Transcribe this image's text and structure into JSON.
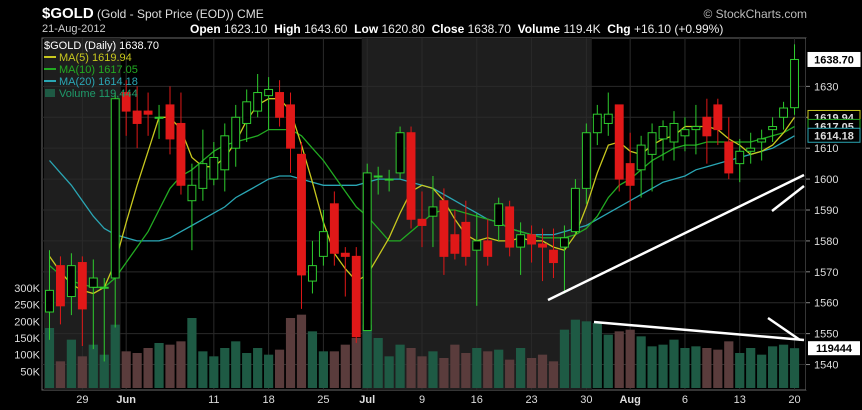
{
  "header": {
    "symbol": "$GOLD",
    "name": "(Gold - Spot Price (EOD))",
    "exchange": "CME",
    "date": "21-Aug-2012",
    "open_label": "Open",
    "open": "1623.10",
    "high_label": "High",
    "high": "1643.60",
    "low_label": "Low",
    "low": "1620.80",
    "close_label": "Close",
    "close": "1638.70",
    "volume_label": "Volume",
    "volume": "119.4K",
    "chg_label": "Chg",
    "chg": "+16.10 (+0.99%)",
    "brand": "© StockCharts.com"
  },
  "legend": {
    "title": "$GOLD (Daily) 1638.70",
    "ma5": "MA(5) 1619.94",
    "ma10": "MA(10) 1617.05",
    "ma20": "MA(20) 1614.18",
    "volume": "Volume 119,444"
  },
  "colors": {
    "up": "#2ecc2e",
    "down": "#e01818",
    "ma5": "#c8c81e",
    "ma10": "#22aa22",
    "ma20": "#2aa6b4",
    "vol_up": "#1e5a44",
    "vol_down": "#5a3c3c",
    "shade": "#1e1e1e",
    "annotation": "#ffffff"
  },
  "chart_data": {
    "type": "candlestick",
    "y_axis": {
      "min": 1535,
      "max": 1645,
      "ticks": [
        1540,
        1550,
        1560,
        1570,
        1580,
        1590,
        1600,
        1610,
        1620,
        1630
      ]
    },
    "volume_axis": {
      "ticks": [
        50000,
        100000,
        150000,
        200000,
        250000,
        300000
      ],
      "tick_labels": [
        "50K",
        "100K",
        "150K",
        "200K",
        "250K",
        "300K"
      ]
    },
    "x_labels": [
      {
        "label": "29",
        "i": 3,
        "bold": false
      },
      {
        "label": "Jun",
        "i": 7,
        "bold": true
      },
      {
        "label": "11",
        "i": 15,
        "bold": false
      },
      {
        "label": "18",
        "i": 20,
        "bold": false
      },
      {
        "label": "25",
        "i": 25,
        "bold": false
      },
      {
        "label": "Jul",
        "i": 29,
        "bold": true
      },
      {
        "label": "9",
        "i": 34,
        "bold": false
      },
      {
        "label": "16",
        "i": 39,
        "bold": false
      },
      {
        "label": "23",
        "i": 44,
        "bold": false
      },
      {
        "label": "30",
        "i": 49,
        "bold": false
      },
      {
        "label": "Aug",
        "i": 53,
        "bold": true
      },
      {
        "label": "6",
        "i": 58,
        "bold": false
      },
      {
        "label": "13",
        "i": 63,
        "bold": false
      },
      {
        "label": "20",
        "i": 68,
        "bold": false
      }
    ],
    "candles": [
      {
        "o": 1557,
        "h": 1577,
        "l": 1548,
        "c": 1564
      },
      {
        "o": 1572,
        "h": 1575,
        "l": 1553,
        "c": 1559
      },
      {
        "o": 1562,
        "h": 1576,
        "l": 1556,
        "c": 1572
      },
      {
        "o": 1573,
        "h": 1575,
        "l": 1546,
        "c": 1558
      },
      {
        "o": 1565,
        "h": 1574,
        "l": 1545,
        "c": 1568
      },
      {
        "o": 1565,
        "h": 1568,
        "l": 1541,
        "c": 1565
      },
      {
        "o": 1568,
        "h": 1628,
        "l": 1552,
        "c": 1626
      },
      {
        "o": 1628,
        "h": 1632,
        "l": 1614,
        "c": 1622
      },
      {
        "o": 1622,
        "h": 1630,
        "l": 1610,
        "c": 1618
      },
      {
        "o": 1622,
        "h": 1628,
        "l": 1614,
        "c": 1621
      },
      {
        "o": 1620,
        "h": 1624,
        "l": 1613,
        "c": 1620
      },
      {
        "o": 1624,
        "h": 1630,
        "l": 1608,
        "c": 1613
      },
      {
        "o": 1618,
        "h": 1628,
        "l": 1595,
        "c": 1598
      },
      {
        "o": 1593,
        "h": 1605,
        "l": 1577,
        "c": 1598
      },
      {
        "o": 1597,
        "h": 1616,
        "l": 1593,
        "c": 1605
      },
      {
        "o": 1600,
        "h": 1612,
        "l": 1598,
        "c": 1607
      },
      {
        "o": 1603,
        "h": 1618,
        "l": 1596,
        "c": 1614
      },
      {
        "o": 1610,
        "h": 1624,
        "l": 1604,
        "c": 1620
      },
      {
        "o": 1618,
        "h": 1629,
        "l": 1612,
        "c": 1625
      },
      {
        "o": 1622,
        "h": 1634,
        "l": 1620,
        "c": 1628
      },
      {
        "o": 1627,
        "h": 1633,
        "l": 1616,
        "c": 1629
      },
      {
        "o": 1628,
        "h": 1632,
        "l": 1617,
        "c": 1620
      },
      {
        "o": 1624,
        "h": 1628,
        "l": 1602,
        "c": 1610
      },
      {
        "o": 1608,
        "h": 1612,
        "l": 1558,
        "c": 1569
      },
      {
        "o": 1567,
        "h": 1580,
        "l": 1563,
        "c": 1572
      },
      {
        "o": 1575,
        "h": 1590,
        "l": 1572,
        "c": 1583
      },
      {
        "o": 1592,
        "h": 1596,
        "l": 1572,
        "c": 1576
      },
      {
        "o": 1576,
        "h": 1578,
        "l": 1562,
        "c": 1575
      },
      {
        "o": 1575,
        "h": 1578,
        "l": 1547,
        "c": 1549
      },
      {
        "o": 1551,
        "h": 1605,
        "l": 1551,
        "c": 1602
      },
      {
        "o": 1601,
        "h": 1604,
        "l": 1595,
        "c": 1601
      },
      {
        "o": 1600,
        "h": 1603,
        "l": 1596,
        "c": 1600
      },
      {
        "o": 1602,
        "h": 1617,
        "l": 1600,
        "c": 1615
      },
      {
        "o": 1615,
        "h": 1617,
        "l": 1584,
        "c": 1587
      },
      {
        "o": 1587,
        "h": 1596,
        "l": 1578,
        "c": 1585
      },
      {
        "o": 1588,
        "h": 1601,
        "l": 1578,
        "c": 1591
      },
      {
        "o": 1593,
        "h": 1597,
        "l": 1569,
        "c": 1575
      },
      {
        "o": 1582,
        "h": 1590,
        "l": 1574,
        "c": 1576
      },
      {
        "o": 1586,
        "h": 1593,
        "l": 1572,
        "c": 1575
      },
      {
        "o": 1577,
        "h": 1589,
        "l": 1559,
        "c": 1580
      },
      {
        "o": 1580,
        "h": 1587,
        "l": 1572,
        "c": 1575
      },
      {
        "o": 1585,
        "h": 1594,
        "l": 1580,
        "c": 1592
      },
      {
        "o": 1591,
        "h": 1593,
        "l": 1575,
        "c": 1578
      },
      {
        "o": 1578,
        "h": 1586,
        "l": 1569,
        "c": 1582
      },
      {
        "o": 1582,
        "h": 1585,
        "l": 1573,
        "c": 1579
      },
      {
        "o": 1579,
        "h": 1584,
        "l": 1567,
        "c": 1578
      },
      {
        "o": 1577,
        "h": 1584,
        "l": 1568,
        "c": 1573
      },
      {
        "o": 1578,
        "h": 1585,
        "l": 1563,
        "c": 1581
      },
      {
        "o": 1583,
        "h": 1600,
        "l": 1582,
        "c": 1597
      },
      {
        "o": 1597,
        "h": 1618,
        "l": 1592,
        "c": 1615
      },
      {
        "o": 1615,
        "h": 1624,
        "l": 1611,
        "c": 1621
      },
      {
        "o": 1618,
        "h": 1628,
        "l": 1614,
        "c": 1621
      },
      {
        "o": 1624,
        "h": 1624,
        "l": 1596,
        "c": 1600
      },
      {
        "o": 1605,
        "h": 1615,
        "l": 1590,
        "c": 1598
      },
      {
        "o": 1603,
        "h": 1614,
        "l": 1594,
        "c": 1611
      },
      {
        "o": 1608,
        "h": 1618,
        "l": 1596,
        "c": 1615
      },
      {
        "o": 1613,
        "h": 1619,
        "l": 1606,
        "c": 1617
      },
      {
        "o": 1612,
        "h": 1622,
        "l": 1606,
        "c": 1618
      },
      {
        "o": 1614,
        "h": 1620,
        "l": 1609,
        "c": 1616
      },
      {
        "o": 1616,
        "h": 1624,
        "l": 1608,
        "c": 1617
      },
      {
        "o": 1620,
        "h": 1626,
        "l": 1605,
        "c": 1614
      },
      {
        "o": 1624,
        "h": 1626,
        "l": 1611,
        "c": 1616
      },
      {
        "o": 1612,
        "h": 1620,
        "l": 1600,
        "c": 1602
      },
      {
        "o": 1605,
        "h": 1613,
        "l": 1599,
        "c": 1609
      },
      {
        "o": 1609,
        "h": 1615,
        "l": 1605,
        "c": 1610
      },
      {
        "o": 1612,
        "h": 1616,
        "l": 1606,
        "c": 1613
      },
      {
        "o": 1616,
        "h": 1620,
        "l": 1612,
        "c": 1617
      },
      {
        "o": 1620,
        "h": 1625,
        "l": 1616,
        "c": 1623
      },
      {
        "o": 1623.1,
        "h": 1643.6,
        "l": 1620.8,
        "c": 1638.7
      }
    ],
    "ma5": [
      1575,
      1570,
      1566,
      1564,
      1563,
      1565,
      1573,
      1586,
      1598,
      1609,
      1620,
      1620,
      1616,
      1607,
      1604,
      1604,
      1607,
      1612,
      1619,
      1624,
      1626,
      1626,
      1622,
      1611,
      1599,
      1586,
      1576,
      1571,
      1567,
      1569,
      1575,
      1581,
      1589,
      1596,
      1598,
      1597,
      1593,
      1587,
      1582,
      1580,
      1581,
      1580,
      1580,
      1581,
      1580,
      1580,
      1578,
      1577,
      1582,
      1591,
      1602,
      1611,
      1612,
      1609,
      1608,
      1611,
      1613,
      1614,
      1617,
      1617,
      1617,
      1616,
      1613,
      1611,
      1608,
      1609,
      1611,
      1615,
      1620
    ],
    "ma10": [
      1572,
      1569,
      1567,
      1566,
      1565,
      1565,
      1568,
      1573,
      1578,
      1583,
      1590,
      1597,
      1601,
      1603,
      1606,
      1609,
      1611,
      1612,
      1613,
      1614,
      1616,
      1616,
      1616,
      1614,
      1610,
      1606,
      1601,
      1596,
      1591,
      1588,
      1584,
      1580,
      1580,
      1583,
      1586,
      1589,
      1590,
      1590,
      1589,
      1588,
      1587,
      1586,
      1584,
      1583,
      1582,
      1581,
      1581,
      1581,
      1582,
      1584,
      1588,
      1594,
      1598,
      1600,
      1603,
      1606,
      1608,
      1610,
      1611,
      1611,
      1612,
      1612,
      1612,
      1612,
      1612,
      1613,
      1614,
      1615,
      1617
    ],
    "ma20": [
      1606,
      1602,
      1598,
      1593,
      1588,
      1584,
      1582,
      1581,
      1580,
      1580,
      1580,
      1581,
      1583,
      1585,
      1587,
      1589,
      1591,
      1594,
      1596,
      1598,
      1600,
      1601,
      1601,
      1600,
      1599,
      1598,
      1598,
      1598,
      1598,
      1599,
      1600,
      1600,
      1600,
      1599,
      1598,
      1597,
      1595,
      1593,
      1591,
      1589,
      1587,
      1586,
      1584,
      1583,
      1582,
      1582,
      1582,
      1583,
      1584,
      1585,
      1587,
      1589,
      1591,
      1593,
      1595,
      1597,
      1599,
      1600,
      1601,
      1603,
      1604,
      1605,
      1606,
      1607,
      1608,
      1609,
      1610,
      1612,
      1614
    ],
    "volume": [
      180000,
      80000,
      145000,
      95000,
      130000,
      100000,
      190000,
      110000,
      105000,
      120000,
      135000,
      130000,
      140000,
      210000,
      110000,
      95000,
      120000,
      140000,
      105000,
      120000,
      100000,
      115000,
      210000,
      220000,
      170000,
      110000,
      110000,
      130000,
      150000,
      190000,
      150000,
      95000,
      130000,
      120000,
      95000,
      110000,
      90000,
      130000,
      105000,
      120000,
      110000,
      115000,
      85000,
      120000,
      90000,
      100000,
      80000,
      175000,
      205000,
      200000,
      195000,
      160000,
      170000,
      175000,
      155000,
      125000,
      130000,
      145000,
      120000,
      125000,
      120000,
      115000,
      140000,
      105000,
      120000,
      100000,
      125000,
      130000,
      119444
    ],
    "price_labels": [
      {
        "value": 1638.7,
        "label": "1638.70"
      },
      {
        "value": 1619.94,
        "label": "1619.94"
      },
      {
        "value": 1617.05,
        "label": "1617.05"
      },
      {
        "value": 1614.18,
        "label": "1614.18"
      }
    ],
    "volume_label": {
      "value": 119444,
      "label": "119444"
    },
    "shaded_ranges": [
      [
        0,
        6
      ],
      [
        29,
        49
      ]
    ]
  }
}
